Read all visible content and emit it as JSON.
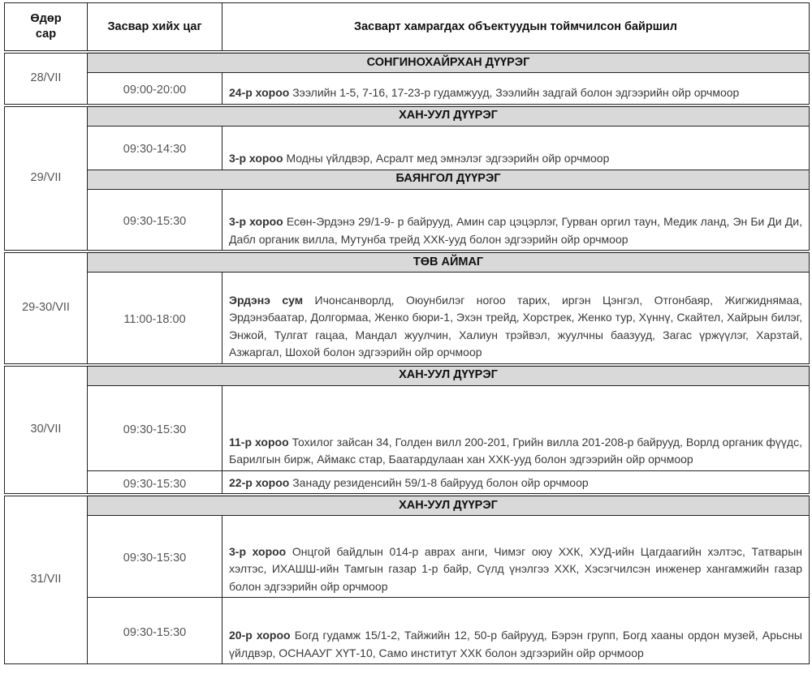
{
  "header": {
    "date_col": "Өдөр сар",
    "time_col": "Засвар хийх цаг",
    "location_col": "Засварт хамрагдах объектуудын тоймчилсон байршил"
  },
  "blocks": [
    {
      "date": "28/VII",
      "sections": [
        {
          "district": "СОНГИНОХАЙРХАН ДҮҮРЭГ",
          "rows": [
            {
              "time": "09:00-20:00",
              "bold": "24-р хороо",
              "text": "Зээлийн 1-5, 7-16, 17-23-р гудамжууд, Зээлийн задгай болон эдгээрийн ойр орчмоор"
            }
          ]
        }
      ]
    },
    {
      "date": "29/VII",
      "sections": [
        {
          "district": "ХАН-УУЛ ДҮҮРЭГ",
          "rows": [
            {
              "time": "09:30-14:30",
              "bold": "3-р хороо",
              "text": "Модны үйлдвэр, Асралт мед эмнэлэг эдгээрийн ойр орчмоор"
            }
          ]
        },
        {
          "district": "БАЯНГОЛ ДҮҮРЭГ",
          "rows": [
            {
              "time": "09:30-15:30",
              "bold": "3-р хороо",
              "text": "Есөн-Эрдэнэ 29/1-9- р байрууд, Амин сар цэцэрлэг, Гурван оргил таун, Медик ланд, Эн Би Ди Ди, Дабл органик вилла, Мутунба трейд ХХК-ууд болон эдгээрийн ойр орчмоор"
            }
          ]
        }
      ]
    },
    {
      "date": "29-30/VII",
      "sections": [
        {
          "district": "ТӨВ АЙМАГ",
          "rows": [
            {
              "time": "11:00-18:00",
              "bold": "Эрдэнэ сум",
              "text": "Ичонсанворлд, Оюунбилэг ногоо тарих, иргэн Цэнгэл, Отгонбаяр, Жигжиднямаа, Эрдэнэбаатар, Долгормаа, Женко бюри-1, Эхэн трейд, Хорстрек, Женко тур, Хүннү, Скайтел, Хайрын билэг, Энжой, Тулгат гацаа, Мандал жуулчин, Халиун трэйвэл, жуулчны баазууд, Загас үржүүлэг, Харзтай, Азжаргал, Шохой болон эдгээрийн ойр орчмоор"
            }
          ]
        }
      ]
    },
    {
      "date": "30/VII",
      "sections": [
        {
          "district": "ХАН-УУЛ ДҮҮРЭГ",
          "rows": [
            {
              "time": "09:30-15:30",
              "bold": "11-р хороо",
              "text": "Тохилог зайсан 34, Голден вилл 200-201, Грийн вилла 201-208-р байрууд, Ворлд органик фүүдс, Барилгын бирж, Аймакс стар, Баатардулаан хан ХХК-ууд болон эдгээрийн ойр орчмоор"
            },
            {
              "time": "09:30-15:30",
              "bold": "22-р хороо",
              "text": "Занаду резиденсийн 59/1-8 байрууд болон ойр орчмоор"
            }
          ]
        }
      ]
    },
    {
      "date": "31/VII",
      "sections": [
        {
          "district": "ХАН-УУЛ ДҮҮРЭГ",
          "rows": [
            {
              "time": "09:30-15:30",
              "bold": "3-р хороо",
              "text": "Онцгой байдлын 014-р аврах анги, Чимэг оюу ХХК, ХУД-ийн Цагдаагийн хэлтэс, Татварын хэлтэс, ИХАШШ-ийн Тамгын газар 1-р байр, Сүлд үнэлгээ ХХК, Хэсэгчилсэн инженер хангамжийн газар болон эдгээрийн ойр орчмоор"
            },
            {
              "time": "09:30-15:30",
              "bold": "20-р хороо",
              "text": "Богд гудамж 15/1-2, Тайжийн 12, 50-р байрууд, Бэрэн групп, Богд хааны ордон музей, Арьсны үйлдвэр, ОСНААУГ ХҮТ-10, Само институт ХХК болон эдгээрийн ойр орчмоор"
            }
          ]
        }
      ]
    }
  ]
}
